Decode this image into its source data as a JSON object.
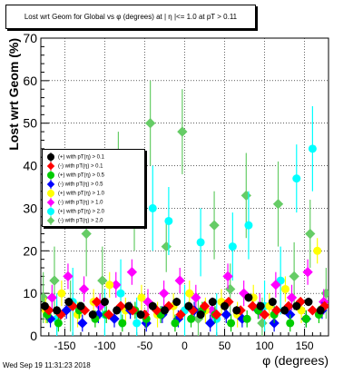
{
  "title": "Lost wrt Geom for Global vs φ (degrees) at | η |<= 1.0 at pT > 0.11",
  "footer": "Wed Sep 19 11:31:23 2018",
  "chart_data": {
    "type": "scatter",
    "xlabel": "φ (degrees)",
    "ylabel": "Lost wrt Geom (%)",
    "xlim": [
      -180,
      180
    ],
    "ylim": [
      0,
      70
    ],
    "xticks": [
      "-150",
      "-100",
      "-50",
      "0",
      "50",
      "100",
      "150"
    ],
    "yticks": [
      "0",
      "10",
      "20",
      "30",
      "40",
      "50",
      "60",
      "70"
    ],
    "grid": true,
    "legend_position": "upper-left",
    "series": [
      {
        "name": "(+) with pT(η) > 0.1",
        "color": "#000000",
        "marker": "circle",
        "x": [
          -175,
          -160,
          -145,
          -130,
          -115,
          -100,
          -85,
          -70,
          -55,
          -40,
          -25,
          -10,
          5,
          20,
          35,
          50,
          65,
          80,
          95,
          110,
          125,
          140,
          155,
          170
        ],
        "y": [
          7,
          6,
          8,
          7,
          5,
          8,
          6,
          7,
          5,
          7,
          6,
          8,
          7,
          5,
          8,
          7,
          6,
          9,
          7,
          8,
          6,
          7,
          8,
          6
        ],
        "err": [
          1,
          1,
          1,
          1,
          1,
          1,
          1,
          1,
          1,
          1,
          1,
          1,
          1,
          1,
          1,
          1,
          1,
          1,
          1,
          1,
          1,
          1,
          1,
          1
        ]
      },
      {
        "name": "(-) with pT(η) > 0.1",
        "color": "#ff0000",
        "marker": "square",
        "x": [
          -170,
          -155,
          -140,
          -125,
          -110,
          -95,
          -80,
          -65,
          -50,
          -35,
          -20,
          -5,
          10,
          25,
          40,
          55,
          70,
          85,
          100,
          115,
          130,
          145,
          160,
          175
        ],
        "y": [
          6,
          5,
          7,
          6,
          8,
          5,
          7,
          6,
          5,
          6,
          7,
          5,
          6,
          7,
          5,
          8,
          6,
          7,
          5,
          6,
          7,
          8,
          6,
          7
        ],
        "err": [
          1,
          1,
          1,
          1,
          1,
          1,
          1,
          1,
          1,
          1,
          1,
          1,
          1,
          1,
          1,
          1,
          1,
          1,
          1,
          1,
          1,
          1,
          1,
          1
        ]
      },
      {
        "name": "(+) with pT(η) > 0.5",
        "color": "#00cc00",
        "marker": "circle",
        "x": [
          -172,
          -158,
          -132,
          -112,
          -98,
          -78,
          -62,
          -48,
          -30,
          -12,
          8,
          22,
          38,
          58,
          78,
          92,
          112,
          132,
          152,
          168
        ],
        "y": [
          5,
          3,
          6,
          4,
          5,
          3,
          6,
          4,
          5,
          3,
          4,
          6,
          5,
          3,
          4,
          6,
          5,
          3,
          4,
          5
        ],
        "err": [
          2,
          2,
          2,
          2,
          2,
          2,
          2,
          2,
          2,
          2,
          2,
          2,
          2,
          2,
          2,
          2,
          2,
          2,
          2,
          2
        ]
      },
      {
        "name": "(-) with pT(η) > 0.5",
        "color": "#0000ff",
        "marker": "square",
        "x": [
          -168,
          -148,
          -128,
          -108,
          -88,
          -68,
          -48,
          -28,
          -8,
          12,
          32,
          52,
          72,
          92,
          112,
          132,
          152,
          172
        ],
        "y": [
          4,
          6,
          3,
          5,
          4,
          6,
          3,
          5,
          4,
          6,
          3,
          5,
          4,
          6,
          3,
          5,
          4,
          6
        ],
        "err": [
          2,
          2,
          2,
          2,
          2,
          2,
          2,
          2,
          2,
          2,
          2,
          2,
          2,
          2,
          2,
          2,
          2,
          2
        ]
      },
      {
        "name": "(+) with pT(η) > 1.0",
        "color": "#ffff00",
        "marker": "circle",
        "x": [
          -174,
          -154,
          -134,
          -114,
          -94,
          -74,
          -54,
          -34,
          -14,
          6,
          26,
          46,
          66,
          86,
          106,
          126,
          146,
          166
        ],
        "y": [
          6,
          10,
          5,
          8,
          12,
          6,
          9,
          5,
          7,
          10,
          6,
          8,
          5,
          9,
          7,
          11,
          6,
          20
        ],
        "err": [
          3,
          3,
          3,
          3,
          3,
          3,
          3,
          3,
          3,
          3,
          3,
          3,
          3,
          3,
          3,
          3,
          3,
          3
        ]
      },
      {
        "name": "(-) with pT(η) > 1.0",
        "color": "#ff00ff",
        "marker": "square",
        "x": [
          -166,
          -146,
          -126,
          -106,
          -86,
          -66,
          -46,
          -26,
          -6,
          14,
          34,
          54,
          74,
          94,
          114,
          134,
          154,
          174
        ],
        "y": [
          9,
          14,
          11,
          7,
          12,
          15,
          8,
          10,
          13,
          9,
          6,
          14,
          10,
          7,
          12,
          9,
          15,
          8
        ],
        "err": [
          3,
          3,
          3,
          3,
          3,
          3,
          3,
          3,
          3,
          3,
          3,
          3,
          3,
          3,
          3,
          3,
          3,
          3
        ]
      },
      {
        "name": "(+) with pT(η) > 2.0",
        "color": "#00ffff",
        "marker": "circle",
        "x": [
          -160,
          -140,
          -120,
          -100,
          -80,
          -60,
          -40,
          -20,
          0,
          20,
          40,
          60,
          80,
          100,
          120,
          140,
          160
        ],
        "y": [
          4,
          8,
          35,
          5,
          10,
          3,
          30,
          27,
          6,
          22,
          4,
          21,
          26,
          7,
          13,
          37,
          44
        ],
        "err": [
          6,
          8,
          8,
          6,
          8,
          6,
          10,
          8,
          6,
          8,
          6,
          8,
          8,
          6,
          8,
          8,
          10
        ]
      },
      {
        "name": "(-) with pT(η) > 2.0",
        "color": "#66cc66",
        "marker": "square",
        "x": [
          -177,
          -163,
          -143,
          -123,
          -103,
          -83,
          -63,
          -43,
          -23,
          -3,
          17,
          37,
          57,
          77,
          97,
          117,
          137,
          157,
          177
        ],
        "y": [
          9,
          13,
          7,
          24,
          13,
          40,
          28,
          50,
          21,
          48,
          4,
          26,
          11,
          33,
          3,
          31,
          14,
          24,
          10
        ],
        "err": [
          6,
          8,
          6,
          10,
          8,
          8,
          8,
          10,
          6,
          10,
          6,
          8,
          6,
          10,
          6,
          10,
          8,
          8,
          6
        ]
      }
    ]
  }
}
